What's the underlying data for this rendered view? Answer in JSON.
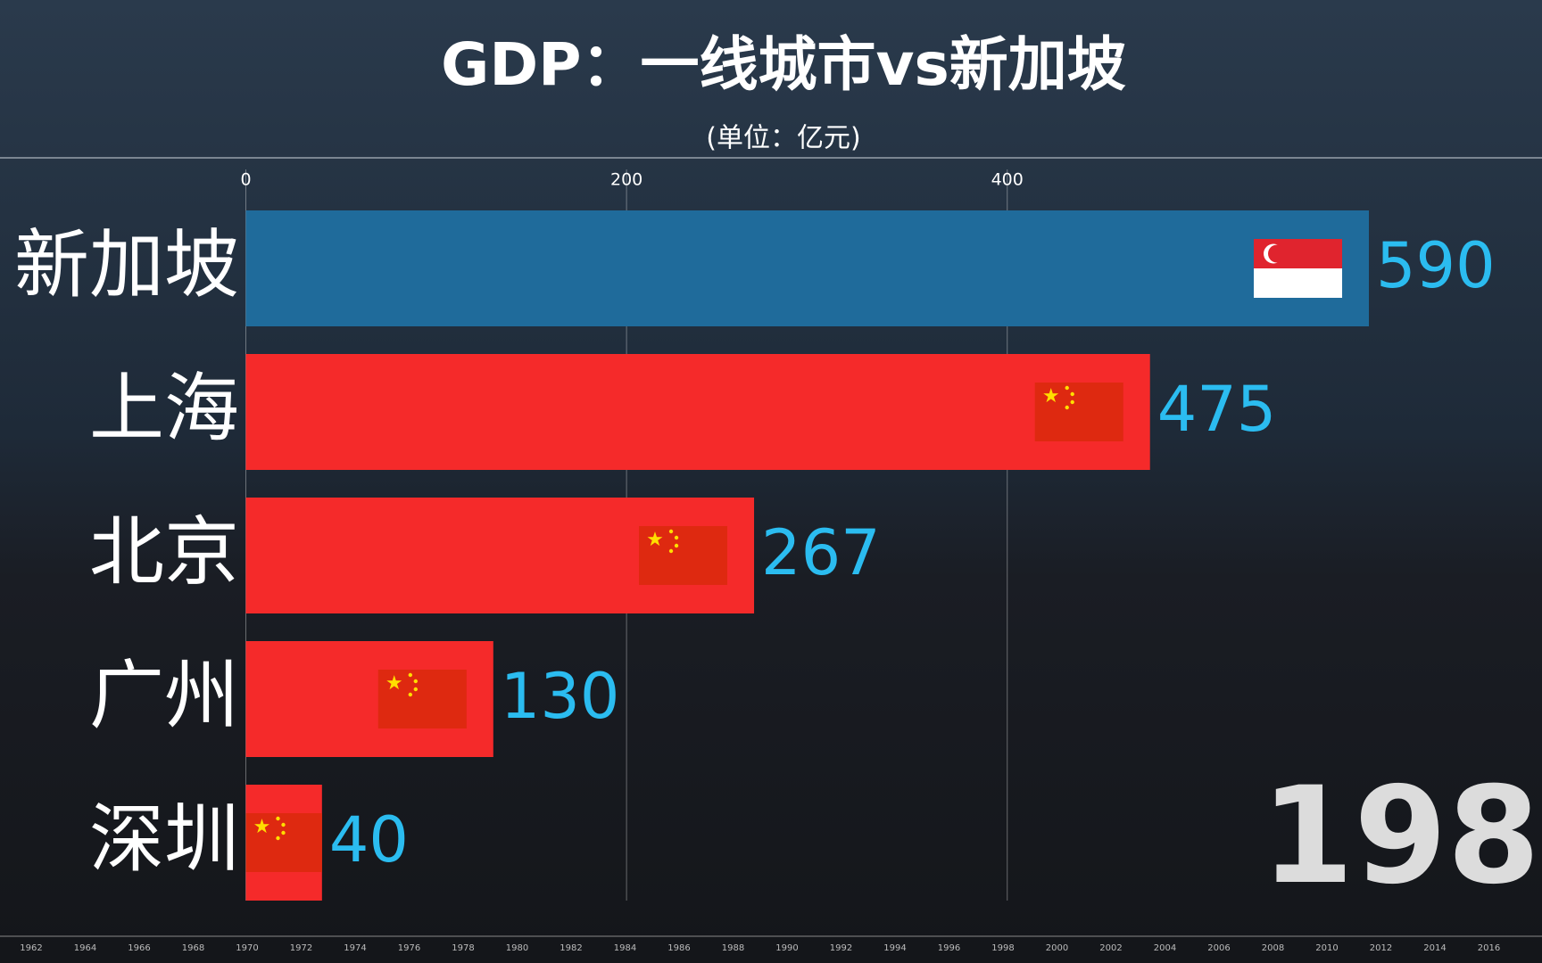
{
  "chart_data": {
    "type": "bar",
    "orientation": "horizontal",
    "title": "GDP：一线城市vs新加坡",
    "subtitle": "(单位：亿元)",
    "categories": [
      "新加坡",
      "上海",
      "北京",
      "广州",
      "深圳"
    ],
    "values": [
      590,
      475,
      267,
      130,
      40
    ],
    "colors": [
      "#1f6b9b",
      "#f52a2a",
      "#f52a2a",
      "#f52a2a",
      "#f52a2a"
    ],
    "value_label_color": "#2bbcf0",
    "xlim": [
      0,
      680
    ],
    "xticks": [
      0,
      200,
      400
    ],
    "grid": true,
    "year_label": "198",
    "timeline": [
      "1962",
      "1964",
      "1966",
      "1968",
      "1970",
      "1972",
      "1974",
      "1976",
      "1978",
      "1980",
      "1982",
      "1984",
      "1986",
      "1988",
      "1990",
      "1992",
      "1994",
      "1996",
      "1998",
      "2000",
      "2002",
      "2004",
      "2006",
      "2008",
      "2010",
      "2012",
      "2014",
      "2016"
    ]
  }
}
